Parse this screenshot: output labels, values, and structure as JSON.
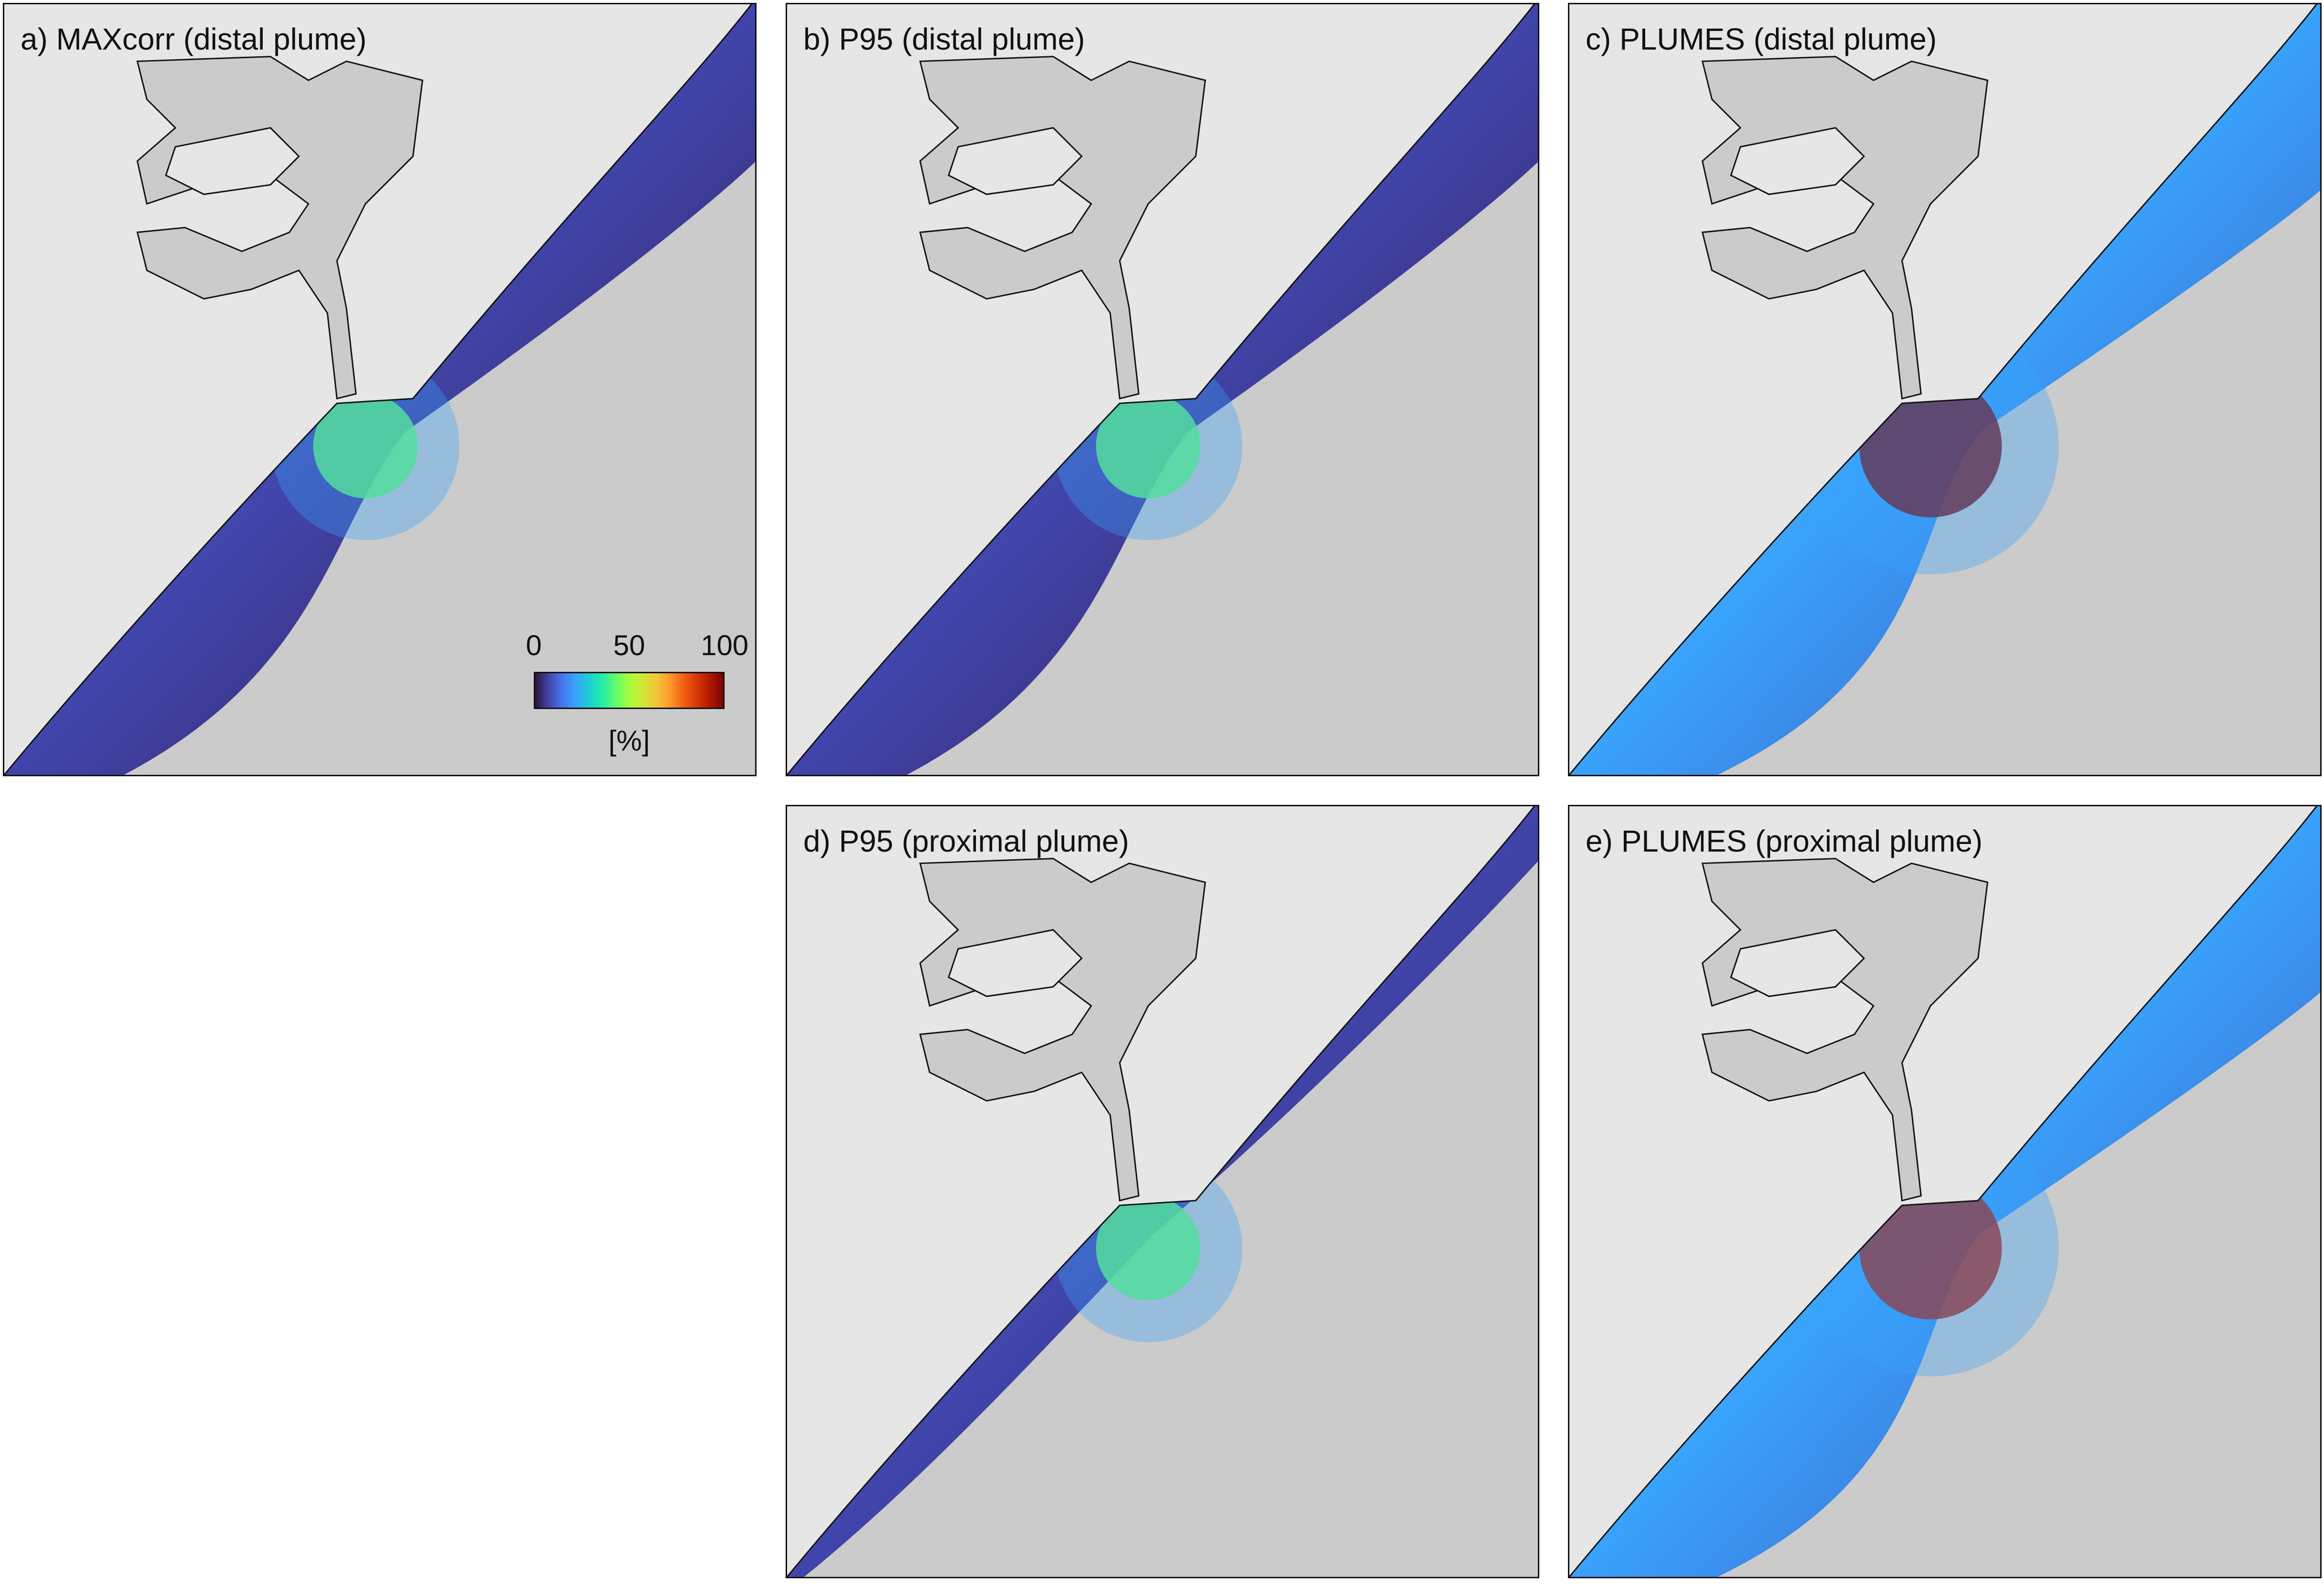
{
  "panels": [
    {
      "id": "a",
      "title": "a) MAXcorr (distal plume)",
      "pattern": "distal-low"
    },
    {
      "id": "b",
      "title": "b) P95 (distal plume)",
      "pattern": "distal-low"
    },
    {
      "id": "c",
      "title": "c) PLUMES (distal plume)",
      "pattern": "distal-high"
    },
    {
      "id": "d",
      "title": "d) P95 (proximal plume)",
      "pattern": "proximal-low"
    },
    {
      "id": "e",
      "title": "e) PLUMES (proximal plume)",
      "pattern": "proximal-high"
    }
  ],
  "colorbar": {
    "ticks": [
      "0",
      "50",
      "100"
    ],
    "min": 0,
    "max": 100,
    "unit": "[%]",
    "colormap": "turbo"
  },
  "colors": {
    "land": "#cbcbcb",
    "sea": "#e6e6e6",
    "coastline": "#111111",
    "low": "#30123b",
    "high": "#7a0403"
  }
}
